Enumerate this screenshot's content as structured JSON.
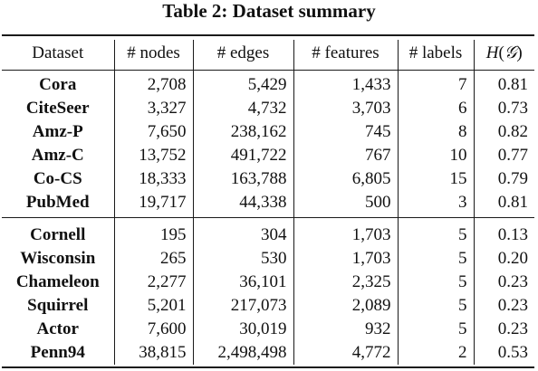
{
  "caption": "Table 2: Dataset summary",
  "headers": {
    "dataset": "Dataset",
    "nodes": "# nodes",
    "edges": "# edges",
    "features": "# features",
    "labels": "# labels",
    "entropy_H": "H",
    "entropy_open": "(",
    "entropy_G": "𝒢",
    "entropy_close": ")"
  },
  "group1": [
    {
      "name": "Cora",
      "nodes": "2,708",
      "edges": "5,429",
      "features": "1,433",
      "labels": "7",
      "entropy": "0.81"
    },
    {
      "name": "CiteSeer",
      "nodes": "3,327",
      "edges": "4,732",
      "features": "3,703",
      "labels": "6",
      "entropy": "0.73"
    },
    {
      "name": "Amz-P",
      "nodes": "7,650",
      "edges": "238,162",
      "features": "745",
      "labels": "8",
      "entropy": "0.82"
    },
    {
      "name": "Amz-C",
      "nodes": "13,752",
      "edges": "491,722",
      "features": "767",
      "labels": "10",
      "entropy": "0.77"
    },
    {
      "name": "Co-CS",
      "nodes": "18,333",
      "edges": "163,788",
      "features": "6,805",
      "labels": "15",
      "entropy": "0.79"
    },
    {
      "name": "PubMed",
      "nodes": "19,717",
      "edges": "44,338",
      "features": "500",
      "labels": "3",
      "entropy": "0.81"
    }
  ],
  "group2": [
    {
      "name": "Cornell",
      "nodes": "195",
      "edges": "304",
      "features": "1,703",
      "labels": "5",
      "entropy": "0.13"
    },
    {
      "name": "Wisconsin",
      "nodes": "265",
      "edges": "530",
      "features": "1,703",
      "labels": "5",
      "entropy": "0.20"
    },
    {
      "name": "Chameleon",
      "nodes": "2,277",
      "edges": "36,101",
      "features": "2,325",
      "labels": "5",
      "entropy": "0.23"
    },
    {
      "name": "Squirrel",
      "nodes": "5,201",
      "edges": "217,073",
      "features": "2,089",
      "labels": "5",
      "entropy": "0.23"
    },
    {
      "name": "Actor",
      "nodes": "7,600",
      "edges": "30,019",
      "features": "932",
      "labels": "5",
      "entropy": "0.23"
    },
    {
      "name": "Penn94",
      "nodes": "38,815",
      "edges": "2,498,498",
      "features": "4,772",
      "labels": "2",
      "entropy": "0.53"
    }
  ]
}
